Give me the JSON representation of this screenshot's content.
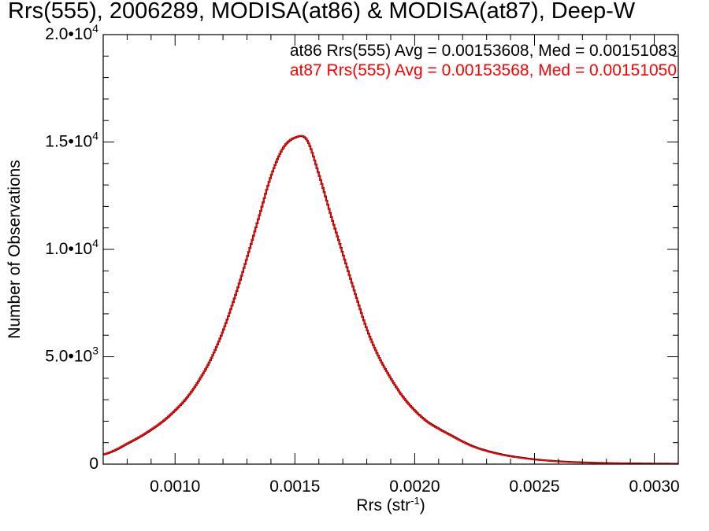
{
  "chart_data": {
    "type": "line",
    "title": "Rrs(555), 2006289, MODISA(at86) & MODISA(at87), Deep-W",
    "xlabel": "Rrs (str",
    "xlabel_sup": "-1",
    "xlabel_close": ")",
    "ylabel": "Number of Observations",
    "xlim": [
      0.0007,
      0.0031
    ],
    "ylim": [
      0,
      20000
    ],
    "x_ticks": [
      0.001,
      0.0015,
      0.002,
      0.0025,
      0.003
    ],
    "x_tick_labels": [
      "0.0010",
      "0.0015",
      "0.0020",
      "0.0025",
      "0.0030"
    ],
    "y_ticks": [
      0,
      5000,
      10000,
      15000,
      20000
    ],
    "y_tick_labels": [
      {
        "base": "0",
        "exp": ""
      },
      {
        "base": "5.0•10",
        "exp": "3"
      },
      {
        "base": "1.0•10",
        "exp": "4"
      },
      {
        "base": "1.5•10",
        "exp": "4"
      },
      {
        "base": "2.0•10",
        "exp": "4"
      }
    ],
    "grid": false,
    "legend_position": "top-right",
    "annotations": [
      {
        "text": "at86 Rrs(555) Avg = 0.00153608, Med = 0.00151083",
        "color": "#000000"
      },
      {
        "text": "at87 Rrs(555) Avg = 0.00153568, Med = 0.00151050",
        "color": "#ff0000"
      }
    ],
    "series": [
      {
        "color": "#000000",
        "x": [
          0.0007,
          0.00075,
          0.0008,
          0.00085,
          0.0009,
          0.00095,
          0.001,
          0.00105,
          0.0011,
          0.00115,
          0.0012,
          0.00125,
          0.0013,
          0.00135,
          0.0014,
          0.00145,
          0.0015,
          0.00155,
          0.0016,
          0.00165,
          0.0017,
          0.00175,
          0.0018,
          0.00185,
          0.0019,
          0.00195,
          0.002,
          0.00205,
          0.0021,
          0.00215,
          0.0022,
          0.00225,
          0.0023,
          0.00235,
          0.0024,
          0.00245,
          0.0025,
          0.00255,
          0.0026,
          0.00265,
          0.0027,
          0.00275,
          0.0028,
          0.00285,
          0.0029,
          0.00295,
          0.003,
          0.00305,
          0.0031
        ],
        "y": [
          450,
          650,
          950,
          1250,
          1600,
          2000,
          2500,
          3100,
          3900,
          4900,
          6200,
          7800,
          9600,
          11500,
          13400,
          14700,
          15200,
          15100,
          13500,
          11600,
          9800,
          8000,
          6300,
          5000,
          4000,
          3150,
          2500,
          2000,
          1650,
          1350,
          1050,
          800,
          620,
          480,
          370,
          290,
          220,
          170,
          130,
          100,
          80,
          65,
          50,
          40,
          35,
          30,
          25,
          22,
          20
        ]
      },
      {
        "color": "#ff0000",
        "x": [
          0.0007,
          0.00075,
          0.0008,
          0.00085,
          0.0009,
          0.00095,
          0.001,
          0.00105,
          0.0011,
          0.00115,
          0.0012,
          0.00125,
          0.0013,
          0.00135,
          0.0014,
          0.00145,
          0.0015,
          0.00155,
          0.0016,
          0.00165,
          0.0017,
          0.00175,
          0.0018,
          0.00185,
          0.0019,
          0.00195,
          0.002,
          0.00205,
          0.0021,
          0.00215,
          0.0022,
          0.00225,
          0.0023,
          0.00235,
          0.0024,
          0.00245,
          0.0025,
          0.00255,
          0.0026,
          0.00265,
          0.0027,
          0.00275,
          0.0028,
          0.00285,
          0.0029,
          0.00295,
          0.003,
          0.00305,
          0.0031
        ],
        "y": [
          460,
          660,
          960,
          1260,
          1610,
          2010,
          2510,
          3110,
          3910,
          4910,
          6210,
          7810,
          9610,
          11510,
          13410,
          14710,
          15210,
          15110,
          13490,
          11590,
          9790,
          7990,
          6290,
          4990,
          3990,
          3140,
          2490,
          1990,
          1640,
          1340,
          1040,
          790,
          610,
          470,
          360,
          280,
          210,
          160,
          125,
          95,
          75,
          60,
          48,
          38,
          32,
          28,
          24,
          21,
          19
        ]
      }
    ]
  }
}
